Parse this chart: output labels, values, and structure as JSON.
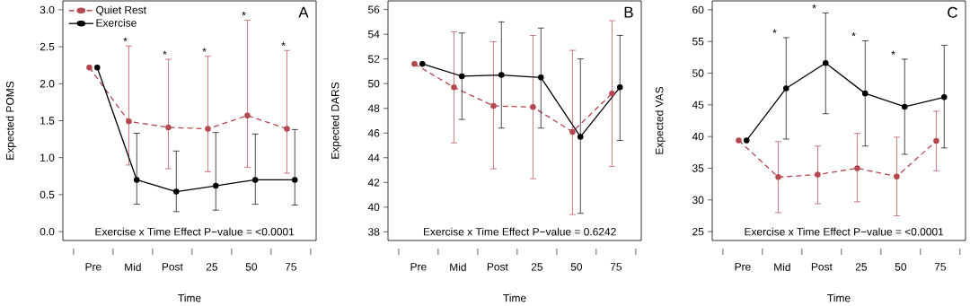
{
  "chart_data": [
    {
      "type": "line",
      "title": "A",
      "xlabel": "Time",
      "ylabel": "Expected POMS",
      "categories": [
        "Pre",
        "Mid",
        "Post",
        "25",
        "50",
        "75"
      ],
      "ylim": [
        -0.12,
        3.12
      ],
      "yticks": [
        {
          "value": 0,
          "label": "0.0"
        },
        {
          "value": 0.5,
          "label": "0.5"
        },
        {
          "value": 1,
          "label": "1.0"
        },
        {
          "value": 1.5,
          "label": "1.5"
        },
        {
          "value": 2,
          "label": "2.0"
        },
        {
          "value": 2.5,
          "label": "2.5"
        },
        {
          "value": 3,
          "label": "3.0"
        }
      ],
      "marker": "circle",
      "legend": "top left",
      "series": [
        {
          "name": "Quiet Rest",
          "color": "#b5474f",
          "line_style": "dashed",
          "values": [
            2.22,
            1.49,
            1.41,
            1.39,
            1.57,
            1.39
          ],
          "errors": [
            null,
            [
              0.9,
              2.51
            ],
            [
              0.85,
              2.33
            ],
            [
              0.81,
              2.37
            ],
            [
              0.87,
              2.86
            ],
            [
              0.79,
              2.45
            ]
          ]
        },
        {
          "name": "Exercise",
          "color": "#000000",
          "line_style": "solid",
          "values": [
            2.22,
            0.7,
            0.54,
            0.62,
            0.7,
            0.7
          ],
          "errors": [
            null,
            [
              0.37,
              1.33
            ],
            [
              0.27,
              1.09
            ],
            [
              0.29,
              1.34
            ],
            [
              0.37,
              1.32
            ],
            [
              0.36,
              1.38
            ]
          ]
        }
      ],
      "annotations": [
        "Exercise x Time Effect P−value = <0.0001",
        {
          "text": "*",
          "x": "Mid",
          "y": 2.51
        },
        {
          "text": "*",
          "x": "Post",
          "y": 2.33
        },
        {
          "text": "*",
          "x": "25",
          "y": 2.37
        },
        {
          "text": "*",
          "x": "50",
          "y": 2.86
        },
        {
          "text": "*",
          "x": "75",
          "y": 2.45
        }
      ]
    },
    {
      "type": "line",
      "title": "B",
      "xlabel": "Time",
      "ylabel": "Expected DARS",
      "categories": [
        "Pre",
        "Mid",
        "Post",
        "25",
        "50",
        "75"
      ],
      "ylim": [
        37.3,
        56.7
      ],
      "yticks": [
        38,
        40,
        42,
        44,
        46,
        48,
        50,
        52,
        54,
        56
      ],
      "marker": "circle",
      "series": [
        {
          "color": "#b5474f",
          "line_style": "dashed",
          "values": [
            51.6,
            49.7,
            48.2,
            48.1,
            46.1,
            49.2
          ],
          "errors": [
            null,
            [
              45.2,
              54.2
            ],
            [
              43.1,
              53.4
            ],
            [
              42.3,
              53.9
            ],
            [
              39.4,
              52.7
            ],
            [
              43.3,
              55.1
            ]
          ]
        },
        {
          "color": "#000000",
          "line_style": "solid",
          "values": [
            51.6,
            50.6,
            50.7,
            50.5,
            45.7,
            49.7
          ],
          "errors": [
            null,
            [
              47.1,
              54.1
            ],
            [
              46.4,
              55.0
            ],
            [
              46.4,
              54.5
            ],
            [
              39.5,
              52.0
            ],
            [
              45.4,
              53.9
            ]
          ]
        }
      ],
      "annotations": [
        "Exercise x Time Effect P−value = 0.6242"
      ]
    },
    {
      "type": "line",
      "title": "C",
      "xlabel": "Time",
      "ylabel": "Expected VAS",
      "categories": [
        "Pre",
        "Mid",
        "Post",
        "25",
        "50",
        "75"
      ],
      "ylim": [
        23.6,
        61.4
      ],
      "yticks": [
        25,
        30,
        35,
        40,
        45,
        50,
        55,
        60
      ],
      "marker": "circle",
      "series": [
        {
          "color": "#b5474f",
          "line_style": "dashed",
          "values": [
            39.4,
            33.6,
            34.0,
            35.0,
            33.7,
            39.3
          ],
          "errors": [
            null,
            [
              28.0,
              39.2
            ],
            [
              29.4,
              38.5
            ],
            [
              29.7,
              40.5
            ],
            [
              27.5,
              39.9
            ],
            [
              34.6,
              44.0
            ]
          ]
        },
        {
          "color": "#000000",
          "line_style": "solid",
          "values": [
            39.4,
            47.6,
            51.6,
            46.8,
            44.7,
            46.2
          ],
          "errors": [
            null,
            [
              39.6,
              55.6
            ],
            [
              43.6,
              59.5
            ],
            [
              38.5,
              55.1
            ],
            [
              37.2,
              52.2
            ],
            [
              38.2,
              54.4
            ]
          ]
        }
      ],
      "annotations": [
        "Exercise x Time Effect P−value = <0.0001",
        {
          "text": "*",
          "x": "Mid",
          "y": 55.6
        },
        {
          "text": "*",
          "x": "Post",
          "y": 59.5
        },
        {
          "text": "*",
          "x": "25",
          "y": 55.1
        },
        {
          "text": "*",
          "x": "50",
          "y": 52.2
        }
      ]
    }
  ]
}
